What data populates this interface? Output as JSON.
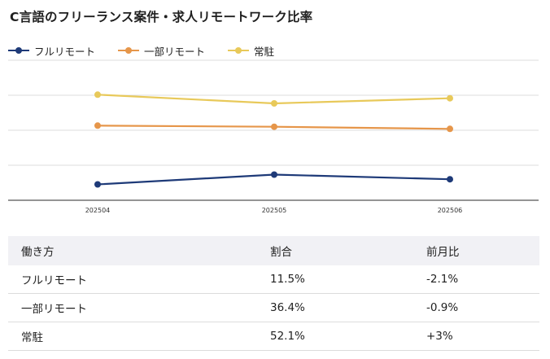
{
  "title": "C言語のフリーランス案件・求人リモートワーク比率",
  "chart_data": {
    "type": "line",
    "title": "C言語のフリーランス案件・求人リモートワーク比率",
    "categories": [
      "202504",
      "202505",
      "202506"
    ],
    "series": [
      {
        "name": "フルリモート",
        "color": "#1e3a78",
        "values": [
          13.6,
          22.0,
          18.0
        ]
      },
      {
        "name": "一部リモート",
        "color": "#e6964a",
        "values": [
          64.0,
          63.0,
          61.2
        ]
      },
      {
        "name": "常駐",
        "color": "#e8c95a",
        "values": [
          90.5,
          83.0,
          87.4
        ]
      }
    ],
    "ylim": [
      0,
      120
    ],
    "xlabel": "",
    "ylabel": "",
    "grid": true,
    "legend": "top-left"
  },
  "table": {
    "headers": [
      "働き方",
      "割合",
      "前月比"
    ],
    "rows": [
      [
        "フルリモート",
        "11.5%",
        "-2.1%"
      ],
      [
        "一部リモート",
        "36.4%",
        "-0.9%"
      ],
      [
        "常駐",
        "52.1%",
        "+3%"
      ]
    ]
  }
}
